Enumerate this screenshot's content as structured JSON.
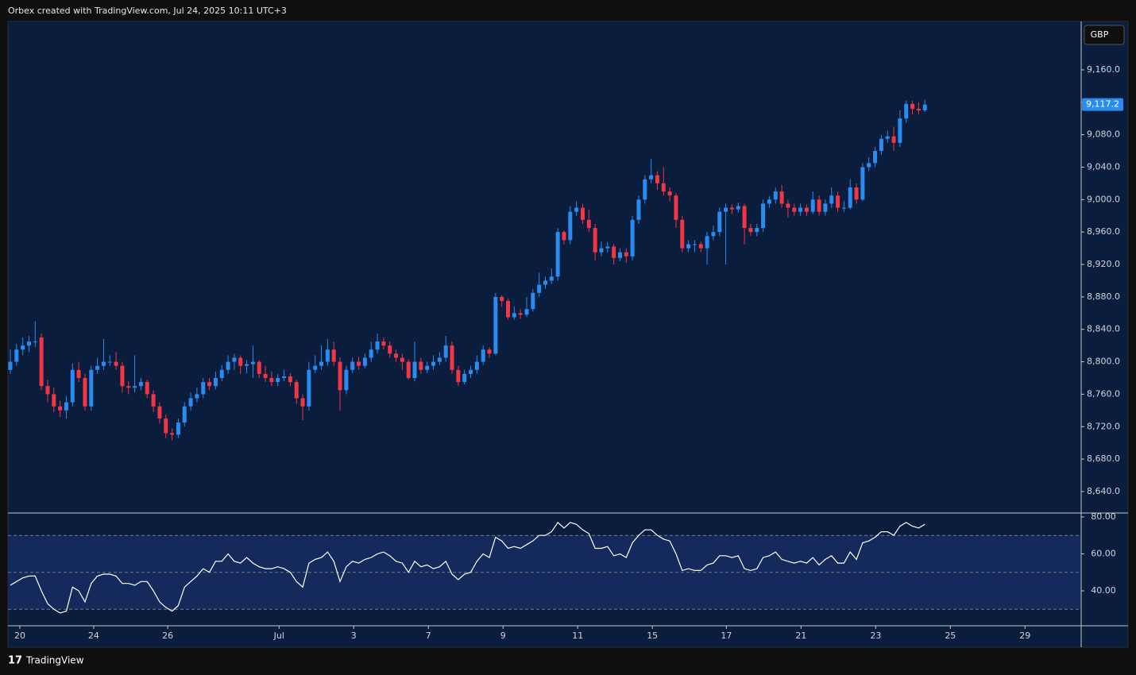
{
  "header": "Orbex created with TradingView.com, Jul 24, 2025 10:11 UTC+3",
  "currency": "GBP",
  "footer": "TradingView",
  "chart_data": [
    {
      "type": "candlestick",
      "up_color": "#2a8cf0",
      "down_color": "#f23645",
      "xlim": [
        -0.38,
        172.0
      ],
      "ylim": [
        8614.5,
        9218.7
      ],
      "xticks": [
        {
          "value": 1.53,
          "label": "20"
        },
        {
          "value": 13.4,
          "label": "24"
        },
        {
          "value": 25.3,
          "label": "26"
        },
        {
          "value": 43.2,
          "label": "Jul"
        },
        {
          "value": 55.2,
          "label": "3"
        },
        {
          "value": 67.2,
          "label": "7"
        },
        {
          "value": 79.2,
          "label": "9"
        },
        {
          "value": 91.2,
          "label": "11"
        },
        {
          "value": 103.2,
          "label": "15"
        },
        {
          "value": 115.1,
          "label": "17"
        },
        {
          "value": 127.1,
          "label": "21"
        },
        {
          "value": 139.1,
          "label": "23"
        },
        {
          "value": 151.1,
          "label": "25"
        },
        {
          "value": 163.1,
          "label": "29"
        }
      ],
      "yticks": [
        {
          "value": 8640,
          "label": "8,640.0"
        },
        {
          "value": 8680,
          "label": "8,680.0"
        },
        {
          "value": 8720,
          "label": "8,720.0"
        },
        {
          "value": 8760,
          "label": "8,760.0"
        },
        {
          "value": 8800,
          "label": "8,800.0"
        },
        {
          "value": 8840,
          "label": "8,840.0"
        },
        {
          "value": 8880,
          "label": "8,880.0"
        },
        {
          "value": 8920,
          "label": "8,920.0"
        },
        {
          "value": 8960,
          "label": "8,960.0"
        },
        {
          "value": 9000,
          "label": "9,000.0"
        },
        {
          "value": 9040,
          "label": "9,040.0"
        },
        {
          "value": 9080,
          "label": "9,080.0"
        },
        {
          "value": 9120,
          "label": "9,120.0"
        },
        {
          "value": 9160,
          "label": "9,160.0"
        }
      ],
      "last_price_label": "9,117.2",
      "ohlc": [
        [
          8790,
          8815,
          8785,
          8800
        ],
        [
          8800,
          8822,
          8795,
          8815
        ],
        [
          8815,
          8830,
          8808,
          8820
        ],
        [
          8820,
          8832,
          8812,
          8825
        ],
        [
          8825,
          8850,
          8818,
          8825
        ],
        [
          8830,
          8835,
          8765,
          8770
        ],
        [
          8770,
          8778,
          8750,
          8760
        ],
        [
          8760,
          8768,
          8738,
          8745
        ],
        [
          8745,
          8752,
          8732,
          8740
        ],
        [
          8740,
          8758,
          8730,
          8750
        ],
        [
          8750,
          8798,
          8745,
          8790
        ],
        [
          8790,
          8800,
          8775,
          8780
        ],
        [
          8780,
          8785,
          8740,
          8745
        ],
        [
          8745,
          8795,
          8740,
          8790
        ],
        [
          8790,
          8805,
          8785,
          8795
        ],
        [
          8795,
          8828,
          8790,
          8800
        ],
        [
          8800,
          8808,
          8795,
          8800
        ],
        [
          8800,
          8812,
          8790,
          8795
        ],
        [
          8795,
          8800,
          8762,
          8770
        ],
        [
          8770,
          8776,
          8760,
          8768
        ],
        [
          8768,
          8808,
          8762,
          8770
        ],
        [
          8770,
          8780,
          8765,
          8775
        ],
        [
          8775,
          8778,
          8755,
          8760
        ],
        [
          8760,
          8765,
          8738,
          8745
        ],
        [
          8745,
          8750,
          8724,
          8730
        ],
        [
          8730,
          8735,
          8706,
          8712
        ],
        [
          8712,
          8718,
          8703,
          8710
        ],
        [
          8710,
          8730,
          8706,
          8725
        ],
        [
          8725,
          8750,
          8720,
          8745
        ],
        [
          8745,
          8762,
          8740,
          8755
        ],
        [
          8755,
          8768,
          8750,
          8760
        ],
        [
          8760,
          8780,
          8755,
          8775
        ],
        [
          8775,
          8780,
          8765,
          8770
        ],
        [
          8770,
          8788,
          8766,
          8780
        ],
        [
          8780,
          8796,
          8776,
          8790
        ],
        [
          8790,
          8808,
          8785,
          8800
        ],
        [
          8800,
          8810,
          8790,
          8805
        ],
        [
          8805,
          8808,
          8785,
          8795
        ],
        [
          8795,
          8802,
          8786,
          8797
        ],
        [
          8797,
          8820,
          8780,
          8800
        ],
        [
          8800,
          8802,
          8780,
          8785
        ],
        [
          8785,
          8795,
          8775,
          8780
        ],
        [
          8780,
          8788,
          8770,
          8775
        ],
        [
          8775,
          8785,
          8770,
          8780
        ],
        [
          8780,
          8790,
          8776,
          8782
        ],
        [
          8782,
          8786,
          8770,
          8775
        ],
        [
          8775,
          8778,
          8748,
          8755
        ],
        [
          8755,
          8760,
          8728,
          8745
        ],
        [
          8745,
          8800,
          8740,
          8790
        ],
        [
          8790,
          8808,
          8786,
          8795
        ],
        [
          8795,
          8820,
          8790,
          8800
        ],
        [
          8800,
          8828,
          8795,
          8815
        ],
        [
          8815,
          8825,
          8795,
          8800
        ],
        [
          8800,
          8805,
          8740,
          8765
        ],
        [
          8765,
          8795,
          8760,
          8790
        ],
        [
          8790,
          8805,
          8786,
          8800
        ],
        [
          8800,
          8806,
          8790,
          8795
        ],
        [
          8795,
          8810,
          8792,
          8805
        ],
        [
          8805,
          8825,
          8800,
          8815
        ],
        [
          8815,
          8835,
          8810,
          8825
        ],
        [
          8825,
          8830,
          8815,
          8820
        ],
        [
          8820,
          8825,
          8805,
          8810
        ],
        [
          8810,
          8815,
          8800,
          8805
        ],
        [
          8805,
          8810,
          8790,
          8800
        ],
        [
          8800,
          8803,
          8778,
          8780
        ],
        [
          8780,
          8825,
          8776,
          8800
        ],
        [
          8800,
          8805,
          8785,
          8790
        ],
        [
          8790,
          8800,
          8786,
          8795
        ],
        [
          8795,
          8808,
          8790,
          8800
        ],
        [
          8800,
          8812,
          8796,
          8805
        ],
        [
          8805,
          8832,
          8800,
          8820
        ],
        [
          8820,
          8825,
          8785,
          8790
        ],
        [
          8790,
          8795,
          8770,
          8775
        ],
        [
          8775,
          8790,
          8772,
          8785
        ],
        [
          8785,
          8795,
          8780,
          8790
        ],
        [
          8790,
          8808,
          8785,
          8800
        ],
        [
          8800,
          8820,
          8796,
          8815
        ],
        [
          8815,
          8818,
          8805,
          8810
        ],
        [
          8810,
          8885,
          8808,
          8880
        ],
        [
          8880,
          8882,
          8868,
          8875
        ],
        [
          8875,
          8878,
          8852,
          8855
        ],
        [
          8855,
          8868,
          8852,
          8860
        ],
        [
          8860,
          8865,
          8853,
          8858
        ],
        [
          8858,
          8880,
          8855,
          8865
        ],
        [
          8865,
          8890,
          8862,
          8885
        ],
        [
          8885,
          8910,
          8880,
          8895
        ],
        [
          8895,
          8905,
          8890,
          8900
        ],
        [
          8900,
          8915,
          8896,
          8905
        ],
        [
          8905,
          8965,
          8900,
          8960
        ],
        [
          8960,
          8962,
          8945,
          8950
        ],
        [
          8950,
          8992,
          8945,
          8985
        ],
        [
          8985,
          8998,
          8980,
          8990
        ],
        [
          8990,
          8995,
          8970,
          8975
        ],
        [
          8975,
          8988,
          8960,
          8965
        ],
        [
          8965,
          8970,
          8925,
          8935
        ],
        [
          8935,
          8948,
          8930,
          8940
        ],
        [
          8940,
          8948,
          8935,
          8942
        ],
        [
          8942,
          8945,
          8920,
          8928
        ],
        [
          8928,
          8940,
          8924,
          8935
        ],
        [
          8935,
          8940,
          8922,
          8930
        ],
        [
          8930,
          8980,
          8925,
          8975
        ],
        [
          8975,
          9005,
          8970,
          9000
        ],
        [
          9000,
          9030,
          8995,
          9025
        ],
        [
          9025,
          9050,
          9020,
          9030
        ],
        [
          9030,
          9035,
          9012,
          9020
        ],
        [
          9020,
          9040,
          9005,
          9010
        ],
        [
          9010,
          9015,
          8998,
          9005
        ],
        [
          9005,
          9008,
          8965,
          8975
        ],
        [
          8975,
          8980,
          8935,
          8940
        ],
        [
          8940,
          8950,
          8935,
          8945
        ],
        [
          8945,
          8950,
          8935,
          8945
        ],
        [
          8945,
          8948,
          8935,
          8940
        ],
        [
          8940,
          8960,
          8920,
          8955
        ],
        [
          8955,
          8968,
          8950,
          8960
        ],
        [
          8960,
          8990,
          8955,
          8985
        ],
        [
          8985,
          8995,
          8920,
          8990
        ],
        [
          8990,
          8994,
          8982,
          8988
        ],
        [
          8988,
          8996,
          8984,
          8992
        ],
        [
          8992,
          8995,
          8945,
          8965
        ],
        [
          8965,
          8970,
          8955,
          8960
        ],
        [
          8960,
          8970,
          8955,
          8965
        ],
        [
          8965,
          9000,
          8960,
          8995
        ],
        [
          8995,
          9004,
          8990,
          9000
        ],
        [
          9000,
          9015,
          8995,
          9010
        ],
        [
          9010,
          9018,
          8990,
          8995
        ],
        [
          8995,
          9000,
          8978,
          8990
        ],
        [
          8990,
          8995,
          8980,
          8985
        ],
        [
          8985,
          8995,
          8980,
          8990
        ],
        [
          8990,
          8994,
          8980,
          8985
        ],
        [
          8985,
          9010,
          8982,
          9000
        ],
        [
          9000,
          9005,
          8980,
          8985
        ],
        [
          8985,
          9000,
          8980,
          8995
        ],
        [
          8995,
          9015,
          8990,
          9005
        ],
        [
          9005,
          9010,
          8985,
          8990
        ],
        [
          8990,
          8998,
          8985,
          8990
        ],
        [
          8990,
          9025,
          8988,
          9015
        ],
        [
          9015,
          9020,
          8995,
          9000
        ],
        [
          9000,
          9045,
          8998,
          9040
        ],
        [
          9040,
          9052,
          9035,
          9045
        ],
        [
          9045,
          9065,
          9040,
          9060
        ],
        [
          9060,
          9080,
          9055,
          9075
        ],
        [
          9075,
          9085,
          9070,
          9078
        ],
        [
          9078,
          9090,
          9060,
          9070
        ],
        [
          9070,
          9110,
          9065,
          9100
        ],
        [
          9100,
          9122,
          9095,
          9118
        ],
        [
          9118,
          9122,
          9105,
          9112
        ],
        [
          9112,
          9120,
          9105,
          9110
        ],
        [
          9110,
          9123,
          9108,
          9117.2
        ]
      ]
    },
    {
      "type": "line",
      "color": "#ffffff",
      "band_color": "#142a5c",
      "ylim": [
        21.5,
        81.7
      ],
      "yticks": [
        {
          "value": 80,
          "label": "80.00"
        },
        {
          "value": 60,
          "label": "60.00"
        },
        {
          "value": 40,
          "label": "40.00"
        }
      ],
      "levels": [
        70,
        50,
        30
      ],
      "values": [
        43,
        45,
        47,
        48,
        48,
        40,
        33,
        30,
        28,
        29,
        42,
        40,
        34,
        44,
        48,
        49,
        49,
        48,
        44,
        44,
        43,
        45,
        45,
        40,
        34,
        31,
        29,
        32,
        42,
        45,
        48,
        52,
        50,
        56,
        56,
        60,
        56,
        55,
        58,
        55,
        53,
        52,
        52,
        53,
        52,
        50,
        45,
        42,
        55,
        57,
        58,
        61,
        56,
        45,
        53,
        56,
        55,
        57,
        58,
        60,
        61,
        59,
        56,
        55,
        50,
        56,
        53,
        54,
        52,
        53,
        56,
        49,
        46,
        49,
        50,
        56,
        60,
        58,
        69,
        67,
        63,
        64,
        63,
        65,
        67,
        70,
        70,
        72,
        77,
        74,
        77,
        76,
        73,
        71,
        63,
        63,
        64,
        59,
        60,
        58,
        66,
        70,
        73,
        73,
        70,
        68,
        67,
        60,
        51,
        52,
        51,
        51,
        54,
        55,
        59,
        59,
        58,
        59,
        52,
        51,
        52,
        58,
        59,
        61,
        57,
        56,
        55,
        56,
        55,
        58,
        54,
        57,
        59,
        55,
        55,
        61,
        57,
        66,
        67,
        69,
        72,
        72,
        70,
        75,
        77,
        75,
        74,
        76
      ]
    }
  ]
}
